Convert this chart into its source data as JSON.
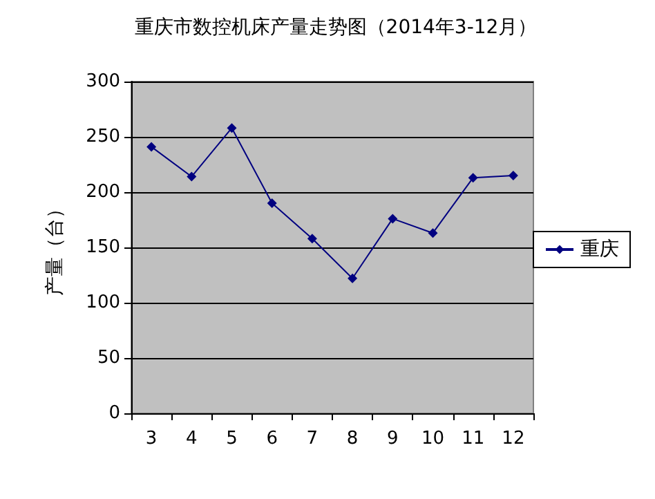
{
  "chart_data": {
    "type": "line",
    "title": "重庆市数控机床产量走势图（2014年3-12月）",
    "ylabel": "产量（台）",
    "categories": [
      "3",
      "4",
      "5",
      "6",
      "7",
      "8",
      "9",
      "10",
      "11",
      "12"
    ],
    "series": [
      {
        "name": "重庆",
        "color": "#000080",
        "values": [
          241,
          214,
          258,
          190,
          158,
          122,
          176,
          163,
          213,
          215
        ]
      }
    ],
    "ylim": [
      0,
      300
    ],
    "yticks": [
      0,
      50,
      100,
      150,
      200,
      250,
      300
    ],
    "grid": "y",
    "legend": "right",
    "marker": "diamond",
    "line_style": "solid"
  }
}
